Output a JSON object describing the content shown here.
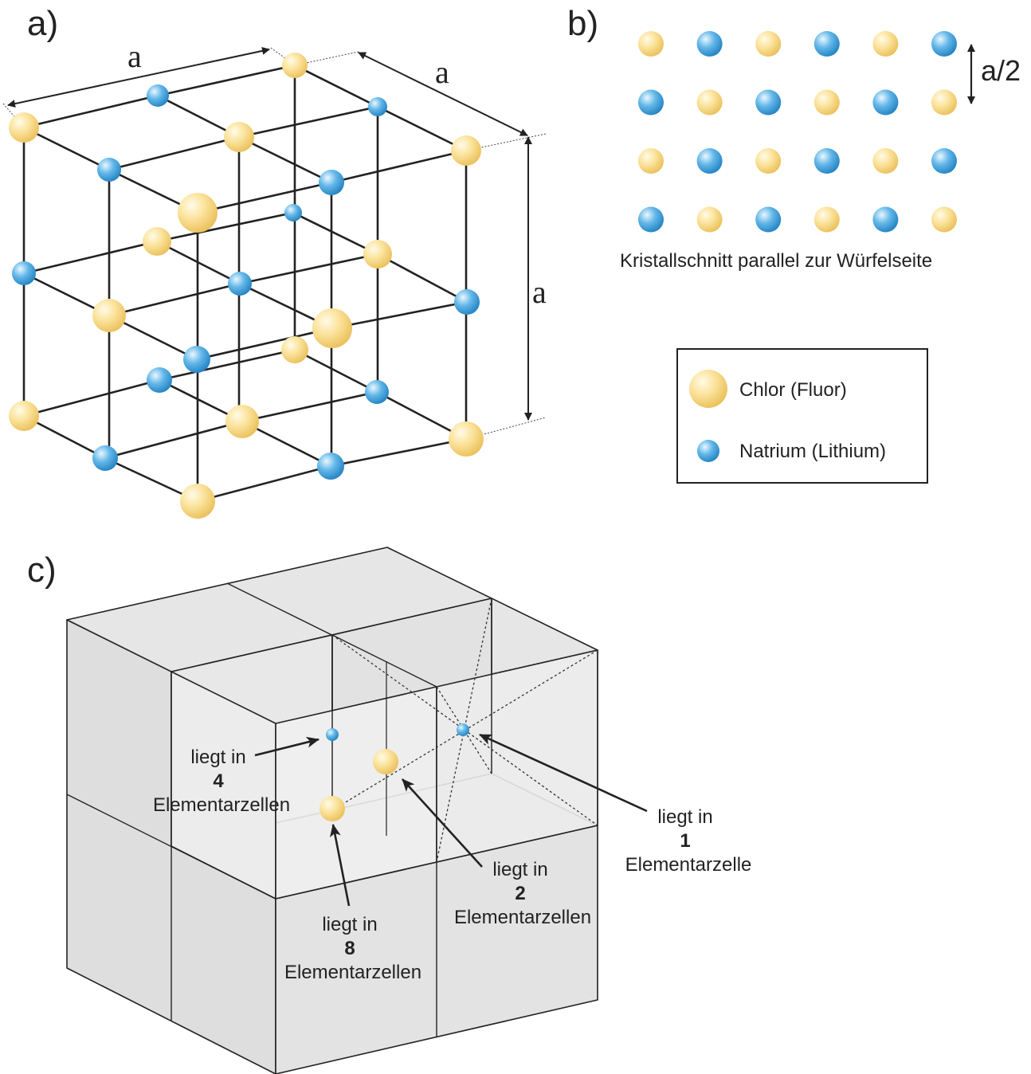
{
  "panels": {
    "a": {
      "label": "a)",
      "dim_top_left": "a",
      "dim_top_right": "a",
      "dim_right": "a"
    },
    "b": {
      "label": "b)",
      "spacing": "a/2",
      "caption": "Kristallschnitt parallel zur Würfelseite"
    },
    "c": {
      "label": "c)"
    }
  },
  "legend": {
    "chlor": "Chlor (Fluor)",
    "natrium": "Natrium (Lithium)"
  },
  "annotations": {
    "one": {
      "l1": "liegt in",
      "num": "1",
      "l3": "Elementarzelle"
    },
    "two": {
      "l1": "liegt in",
      "num": "2",
      "l3": "Elementarzellen"
    },
    "four": {
      "l1": "liegt in",
      "num": "4",
      "l3": "Elementarzellen"
    },
    "eight": {
      "l1": "liegt in",
      "num": "8",
      "l3": "Elementarzellen"
    }
  },
  "grid_b": {
    "rows": [
      [
        "Cl",
        "Na",
        "Cl",
        "Na",
        "Cl",
        "Na"
      ],
      [
        "Na",
        "Cl",
        "Na",
        "Cl",
        "Na",
        "Cl"
      ],
      [
        "Cl",
        "Na",
        "Cl",
        "Na",
        "Cl",
        "Na"
      ],
      [
        "Na",
        "Cl",
        "Na",
        "Cl",
        "Na",
        "Cl"
      ]
    ]
  },
  "colors": {
    "chlor": "#f6d77e",
    "natrium": "#4aa6dc",
    "line": "#222222",
    "face": "#e5e5e5"
  }
}
